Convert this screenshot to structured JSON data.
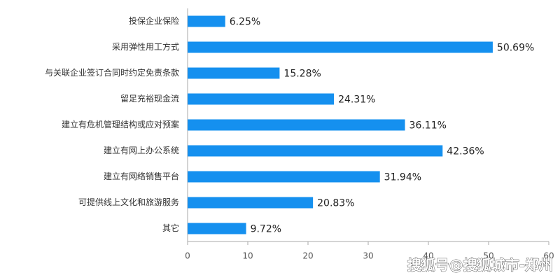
{
  "chart_data": {
    "type": "hbar",
    "categories": [
      "投保企业保险",
      "采用弹性用工方式",
      "与关联企业签订合同时约定免责条款",
      "留足充裕现金流",
      "建立有危机管理结构或应对预案",
      "建立有网上办公系统",
      "建立有网络销售平台",
      "可提供线上文化和旅游服务",
      "其它"
    ],
    "values": [
      6.25,
      50.69,
      15.28,
      24.31,
      36.11,
      42.36,
      31.94,
      20.83,
      9.72
    ],
    "value_labels": [
      "6.25%",
      "50.69%",
      "15.28%",
      "24.31%",
      "36.11%",
      "42.36%",
      "31.94%",
      "20.83%",
      "9.72%"
    ],
    "color": "#1590ef",
    "xlim": [
      0,
      60
    ],
    "xticks": [
      0,
      10,
      20,
      30,
      40,
      50,
      60
    ],
    "watermark": "搜狐号@搜狐城市-郑州"
  }
}
